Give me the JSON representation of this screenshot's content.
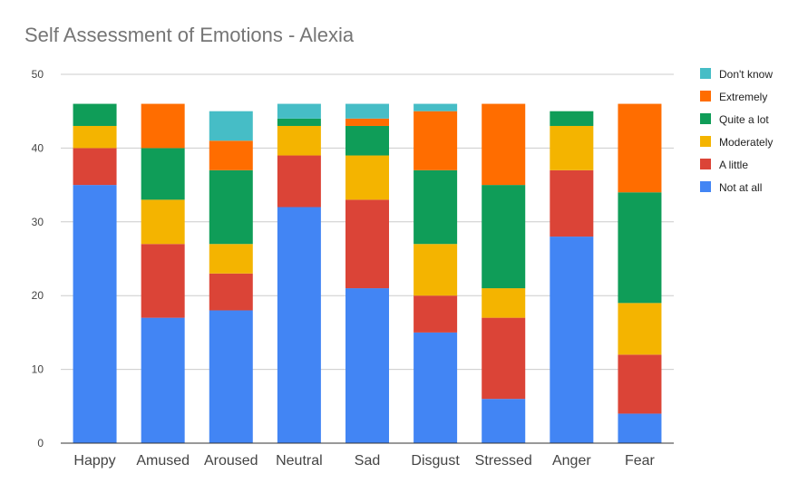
{
  "chart_data": {
    "type": "bar",
    "stacked": true,
    "title": "Self Assessment of Emotions - Alexia",
    "xlabel": "",
    "ylabel": "",
    "ylim": [
      0,
      50
    ],
    "yticks": [
      0,
      10,
      20,
      30,
      40,
      50
    ],
    "grid": true,
    "legend_position": "right",
    "categories": [
      "Happy",
      "Amused",
      "Aroused",
      "Neutral",
      "Sad",
      "Disgust",
      "Stressed",
      "Anger",
      "Fear"
    ],
    "series": [
      {
        "name": "Not at all",
        "color": "#4285F4",
        "values": [
          35,
          17,
          18,
          32,
          21,
          15,
          6,
          28,
          4
        ]
      },
      {
        "name": "A little",
        "color": "#DB4437",
        "values": [
          5,
          10,
          5,
          7,
          12,
          5,
          11,
          9,
          8
        ]
      },
      {
        "name": "Moderately",
        "color": "#F4B400",
        "values": [
          3,
          6,
          4,
          4,
          6,
          7,
          4,
          6,
          7
        ]
      },
      {
        "name": "Quite a lot",
        "color": "#0F9D58",
        "values": [
          3,
          7,
          10,
          1,
          4,
          10,
          14,
          2,
          15
        ]
      },
      {
        "name": "Extremely",
        "color": "#FF6D00",
        "values": [
          0,
          6,
          4,
          0,
          1,
          8,
          11,
          0,
          12
        ]
      },
      {
        "name": "Don't know",
        "color": "#46BDC6",
        "values": [
          0,
          0,
          4,
          2,
          2,
          1,
          0,
          0,
          0
        ]
      }
    ]
  }
}
